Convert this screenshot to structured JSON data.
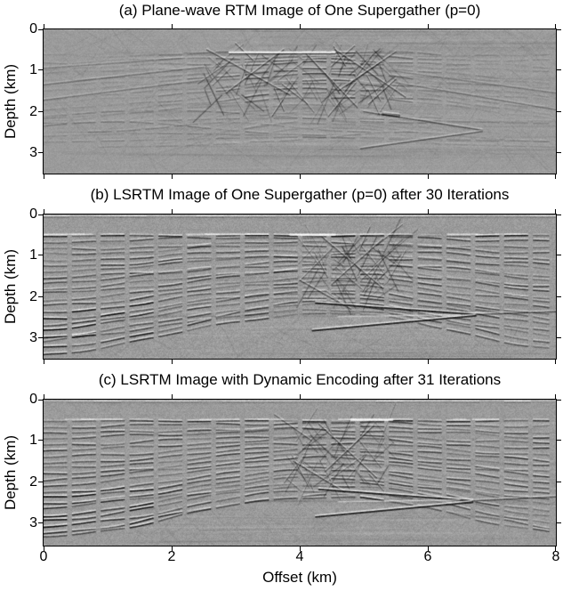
{
  "figure": {
    "background_color": "#ffffff",
    "text_color": "#000000",
    "colormap": "gray",
    "xlabel": "Offset (km)",
    "ylabel": "Depth (km)",
    "x_tick_labels": [
      "0",
      "2",
      "4",
      "6",
      "8"
    ],
    "y_tick_labels": [
      "0",
      "1",
      "2",
      "3"
    ],
    "panels": [
      {
        "id": "a",
        "title": "(a) Plane-wave RTM Image of One Supergather (p=0)"
      },
      {
        "id": "b",
        "title": "(b) LSRTM Image of One Supergather (p=0) after 30 Iterations"
      },
      {
        "id": "c",
        "title": "(c) LSRTM Image with Dynamic Encoding after 31 Iterations"
      }
    ]
  },
  "chart_data": [
    {
      "type": "heatmap",
      "subtype": "seismic-migration-image",
      "title": "(a) Plane-wave RTM Image of One Supergather (p=0)",
      "xlabel": "Offset (km)",
      "ylabel": "Depth (km)",
      "xlim": [
        0,
        8
      ],
      "ylim": [
        3.5,
        0
      ],
      "x_ticks": [
        0,
        2,
        4,
        6,
        8
      ],
      "y_ticks": [
        0,
        1,
        2,
        3
      ],
      "colormap": "gray",
      "grid": false,
      "legend": "none",
      "description": "Grayscale reverse-time-migration image: noisy crosshatched texture of dipping events, strongest focused reflectivity between 2.5-5.5 km offset at 0.5-2 km depth, a bright flat reflector segment near 0.55 km depth between ~2.9 and 4.6 km offset, crossing steep artifacts, and faint broad migration-smile arcs below ~2 km depth."
    },
    {
      "type": "heatmap",
      "subtype": "seismic-migration-image",
      "title": "(b) LSRTM Image of One Supergather (p=0) after 30 Iterations",
      "xlabel": "Offset (km)",
      "ylabel": "Depth (km)",
      "xlim": [
        0,
        8
      ],
      "ylim": [
        3.5,
        0
      ],
      "x_ticks": [
        0,
        2,
        4,
        6,
        8
      ],
      "y_ticks": [
        0,
        1,
        2,
        3
      ],
      "colormap": "gray",
      "grid": false,
      "legend": "none",
      "description": "Least-squares RTM image with sharper, more continuous reflectors: quiet shallow zone above a strong horizon at ~0.5 km depth, layered reflectors rising from both edges toward an anticlinal crest near 4.3 km offset, strong deep layered stack at the lower left, steep fault-zone scattering near 4.5-5.3 km offset, and a reflector wedge pinching out near 6.7 km offset at ~2.4 km depth."
    },
    {
      "type": "heatmap",
      "subtype": "seismic-migration-image",
      "title": "(c) LSRTM Image with Dynamic Encoding after 31 Iterations",
      "xlabel": "Offset (km)",
      "ylabel": "Depth (km)",
      "xlim": [
        0,
        8
      ],
      "ylim": [
        3.5,
        0
      ],
      "x_ticks": [
        0,
        2,
        4,
        6,
        8
      ],
      "y_ticks": [
        0,
        1,
        2,
        3
      ],
      "colormap": "gray",
      "grid": false,
      "legend": "none",
      "description": "Dynamically encoded LSRTM image, very similar to panel (b): continuous layered reflectors below a sharp ~0.5 km horizon, anticline centered near 4.3 km offset, deep high-amplitude layers at the lower left, and a pinch-out wedge near 6.7 km offset at ~2.5 km depth."
    }
  ]
}
